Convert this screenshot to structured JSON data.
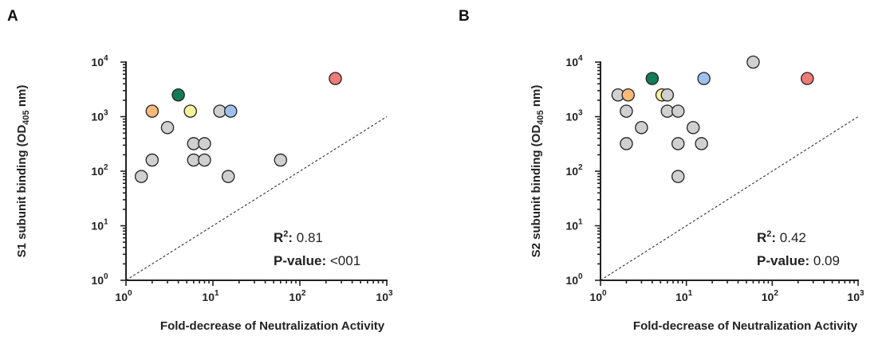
{
  "chart_data": [
    {
      "panel_label": "A",
      "type": "scatter",
      "title": "",
      "xlabel": "Fold-decrease of Neutralization Activity",
      "ylabel_parts": {
        "prefix": "S1 subunit binding (OD",
        "subscript": "405",
        "suffix": " nm)"
      },
      "x_scale": "log",
      "y_scale": "log",
      "xlim": [
        1,
        1000
      ],
      "ylim": [
        1,
        10000
      ],
      "x_ticks": [
        {
          "base": "10",
          "exp": "0"
        },
        {
          "base": "10",
          "exp": "1"
        },
        {
          "base": "10",
          "exp": "2"
        },
        {
          "base": "10",
          "exp": "3"
        }
      ],
      "y_ticks": [
        {
          "base": "10",
          "exp": "0"
        },
        {
          "base": "10",
          "exp": "1"
        },
        {
          "base": "10",
          "exp": "2"
        },
        {
          "base": "10",
          "exp": "3"
        },
        {
          "base": "10",
          "exp": "4"
        }
      ],
      "reference_line": {
        "style": "dashed",
        "from": [
          1,
          1
        ],
        "to": [
          1000,
          1000
        ]
      },
      "stats": {
        "r2_label": "R",
        "r2_exp": "2",
        "r2_sep": ":",
        "r2_value": " 0.81",
        "p_label": "P-value:",
        "p_value": " <001"
      },
      "grid": false,
      "points": [
        {
          "x": 1.5,
          "y": 80,
          "color": "#d0d0d0"
        },
        {
          "x": 2,
          "y": 160,
          "color": "#d0d0d0"
        },
        {
          "x": 2,
          "y": 1260,
          "color": "#f9b97a"
        },
        {
          "x": 3,
          "y": 630,
          "color": "#d0d0d0"
        },
        {
          "x": 4,
          "y": 2500,
          "color": "#137c54"
        },
        {
          "x": 5.5,
          "y": 1260,
          "color": "#f6f29b"
        },
        {
          "x": 6,
          "y": 320,
          "color": "#d0d0d0"
        },
        {
          "x": 6,
          "y": 160,
          "color": "#d0d0d0"
        },
        {
          "x": 8,
          "y": 320,
          "color": "#d0d0d0"
        },
        {
          "x": 8,
          "y": 160,
          "color": "#d0d0d0"
        },
        {
          "x": 12,
          "y": 1260,
          "color": "#d0d0d0"
        },
        {
          "x": 15,
          "y": 80,
          "color": "#d0d0d0"
        },
        {
          "x": 16,
          "y": 1260,
          "color": "#9cc1ee"
        },
        {
          "x": 60,
          "y": 160,
          "color": "#d0d0d0"
        },
        {
          "x": 256,
          "y": 5000,
          "color": "#ef7b78"
        }
      ]
    },
    {
      "panel_label": "B",
      "type": "scatter",
      "title": "",
      "xlabel": "Fold-decrease of Neutralization Activity",
      "ylabel_parts": {
        "prefix": "S2 subunit binding (OD",
        "subscript": "405",
        "suffix": " nm)"
      },
      "x_scale": "log",
      "y_scale": "log",
      "xlim": [
        1,
        1000
      ],
      "ylim": [
        1,
        10000
      ],
      "x_ticks": [
        {
          "base": "10",
          "exp": "0"
        },
        {
          "base": "10",
          "exp": "1"
        },
        {
          "base": "10",
          "exp": "2"
        },
        {
          "base": "10",
          "exp": "3"
        }
      ],
      "y_ticks": [
        {
          "base": "10",
          "exp": "0"
        },
        {
          "base": "10",
          "exp": "1"
        },
        {
          "base": "10",
          "exp": "2"
        },
        {
          "base": "10",
          "exp": "3"
        },
        {
          "base": "10",
          "exp": "4"
        }
      ],
      "reference_line": {
        "style": "dashed",
        "from": [
          1,
          1
        ],
        "to": [
          1000,
          1000
        ]
      },
      "stats": {
        "r2_label": "R",
        "r2_exp": "2",
        "r2_sep": ":",
        "r2_value": " 0.42",
        "p_label": "P-value:",
        "p_value": " 0.09"
      },
      "grid": false,
      "points": [
        {
          "x": 1.6,
          "y": 2500,
          "color": "#d0d0d0"
        },
        {
          "x": 2,
          "y": 1260,
          "color": "#d0d0d0"
        },
        {
          "x": 2,
          "y": 320,
          "color": "#d0d0d0"
        },
        {
          "x": 2.1,
          "y": 2500,
          "color": "#f9b97a"
        },
        {
          "x": 3,
          "y": 630,
          "color": "#d0d0d0"
        },
        {
          "x": 4,
          "y": 5000,
          "color": "#137c54"
        },
        {
          "x": 5.2,
          "y": 2500,
          "color": "#f6f29b"
        },
        {
          "x": 6,
          "y": 2500,
          "color": "#d0d0d0"
        },
        {
          "x": 6,
          "y": 1260,
          "color": "#d0d0d0"
        },
        {
          "x": 8,
          "y": 1260,
          "color": "#d0d0d0"
        },
        {
          "x": 8,
          "y": 320,
          "color": "#d0d0d0"
        },
        {
          "x": 8,
          "y": 80,
          "color": "#d0d0d0"
        },
        {
          "x": 12,
          "y": 630,
          "color": "#d0d0d0"
        },
        {
          "x": 15,
          "y": 320,
          "color": "#d0d0d0"
        },
        {
          "x": 16,
          "y": 5000,
          "color": "#9cc1ee"
        },
        {
          "x": 60,
          "y": 10000,
          "color": "#d0d0d0"
        },
        {
          "x": 256,
          "y": 5000,
          "color": "#ef7b78"
        }
      ]
    }
  ]
}
